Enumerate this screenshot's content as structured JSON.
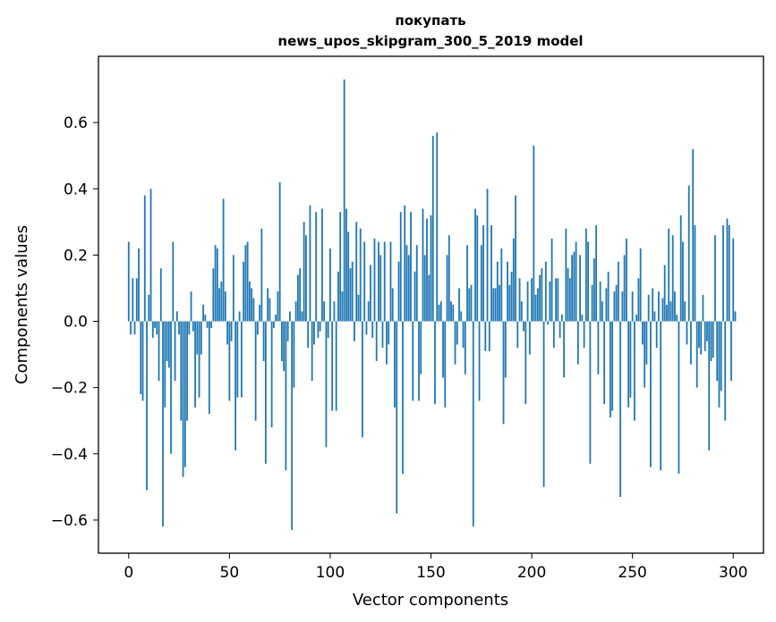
{
  "chart_data": {
    "type": "bar",
    "title_line1": "покупать",
    "title_line2": "news_upos_skipgram_300_5_2019 model",
    "xlabel": "Vector components",
    "ylabel": "Components values",
    "xlim": [
      -15,
      315
    ],
    "ylim": [
      -0.7,
      0.8
    ],
    "xticks": [
      0,
      50,
      100,
      150,
      200,
      250,
      300
    ],
    "xtick_labels": [
      "0",
      "50",
      "100",
      "150",
      "200",
      "250",
      "300"
    ],
    "yticks": [
      -0.6,
      -0.4,
      -0.2,
      0.0,
      0.2,
      0.4,
      0.6
    ],
    "ytick_labels": [
      "−0.6",
      "−0.4",
      "−0.2",
      "0.0",
      "0.2",
      "0.4",
      "0.6"
    ],
    "bar_color": "#1f77b4",
    "grid": false,
    "values": [
      0.24,
      -0.04,
      0.13,
      -0.04,
      0.13,
      0.22,
      -0.22,
      -0.24,
      0.38,
      -0.51,
      0.08,
      0.4,
      -0.05,
      -0.02,
      -0.04,
      -0.18,
      0.16,
      -0.62,
      -0.26,
      -0.12,
      -0.14,
      -0.4,
      0.24,
      -0.18,
      0.03,
      -0.04,
      -0.3,
      -0.47,
      -0.44,
      -0.3,
      -0.04,
      0.09,
      -0.03,
      -0.26,
      -0.1,
      -0.23,
      -0.1,
      0.05,
      0.02,
      -0.02,
      -0.28,
      -0.02,
      0.16,
      0.23,
      0.22,
      0.1,
      0.12,
      0.37,
      0.09,
      -0.07,
      -0.24,
      -0.06,
      0.2,
      -0.39,
      -0.23,
      0.03,
      -0.23,
      0.18,
      0.23,
      0.24,
      0.12,
      0.1,
      0.07,
      -0.3,
      -0.04,
      0.05,
      0.28,
      -0.12,
      -0.43,
      0.1,
      0.07,
      -0.32,
      -0.02,
      0.02,
      0.09,
      0.42,
      -0.12,
      -0.15,
      -0.45,
      -0.06,
      0.03,
      -0.63,
      -0.2,
      0.06,
      0.14,
      0.16,
      0.03,
      0.3,
      0.26,
      -0.08,
      0.35,
      -0.18,
      -0.07,
      0.33,
      -0.05,
      -0.03,
      0.34,
      0.06,
      -0.38,
      -0.05,
      0.22,
      -0.27,
      0.06,
      -0.27,
      0.15,
      0.33,
      0.09,
      0.73,
      0.34,
      0.27,
      0.16,
      0.18,
      -0.06,
      0.3,
      0.08,
      0.28,
      -0.35,
      0.24,
      -0.04,
      0.06,
      0.17,
      -0.05,
      0.25,
      -0.12,
      0.24,
      0.2,
      -0.08,
      0.24,
      -0.13,
      -0.07,
      0.24,
      0.1,
      -0.26,
      -0.58,
      0.18,
      0.33,
      -0.46,
      0.35,
      0.23,
      0.2,
      0.33,
      -0.24,
      0.15,
      0.23,
      -0.24,
      -0.16,
      0.34,
      0.2,
      0.31,
      0.14,
      0.32,
      0.56,
      -0.25,
      0.57,
      0.05,
      0.06,
      -0.17,
      -0.26,
      0.2,
      0.26,
      0.06,
      0.05,
      -0.13,
      -0.07,
      0.1,
      0.03,
      -0.08,
      -0.16,
      0.23,
      0.1,
      0.11,
      -0.62,
      0.34,
      0.32,
      -0.24,
      0.23,
      0.29,
      -0.09,
      0.4,
      -0.09,
      0.29,
      0.1,
      0.1,
      0.18,
      0.11,
      0.22,
      -0.31,
      -0.17,
      0.18,
      0.11,
      0.15,
      0.25,
      0.38,
      -0.08,
      0.13,
      0.06,
      -0.03,
      -0.25,
      0.12,
      -0.1,
      0.13,
      0.53,
      0.08,
      0.1,
      0.14,
      0.16,
      -0.5,
      0.18,
      -0.01,
      0.12,
      0.25,
      -0.08,
      0.13,
      0.13,
      -0.05,
      0.02,
      -0.17,
      0.28,
      0.16,
      0.13,
      0.2,
      0.21,
      0.24,
      -0.13,
      0.2,
      0.02,
      -0.08,
      0.28,
      0.24,
      -0.43,
      0.11,
      0.19,
      0.29,
      -0.16,
      0.12,
      0.06,
      -0.25,
      0.1,
      0.15,
      -0.29,
      -0.27,
      0.09,
      0.11,
      0.18,
      -0.53,
      0.09,
      0.2,
      0.25,
      -0.26,
      -0.23,
      0.09,
      -0.3,
      0.02,
      0.13,
      0.22,
      -0.07,
      -0.2,
      -0.13,
      0.08,
      -0.44,
      0.1,
      0.03,
      -0.08,
      0.09,
      -0.45,
      0.07,
      0.17,
      0.05,
      0.28,
      0.06,
      0.26,
      0.09,
      0.02,
      -0.46,
      0.32,
      0.24,
      0.06,
      -0.07,
      0.41,
      -0.13,
      0.52,
      0.29,
      -0.2,
      -0.08,
      -0.1,
      0.08,
      -0.09,
      -0.06,
      -0.39,
      -0.12,
      -0.11,
      0.26,
      -0.18,
      -0.26,
      -0.21,
      0.29,
      -0.3,
      0.31,
      0.29,
      -0.18,
      0.25,
      0.03
    ]
  }
}
